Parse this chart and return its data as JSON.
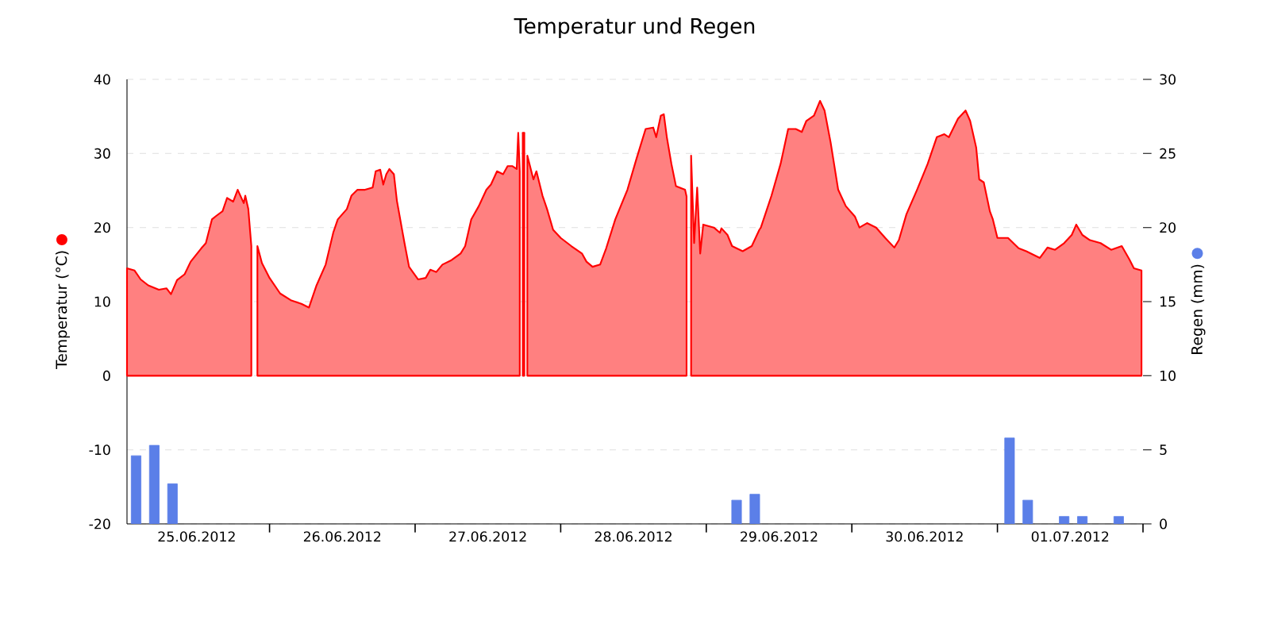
{
  "chart_data": {
    "type": "area",
    "title": "Temperatur und Regen",
    "ylabel": "Temperatur (°C)",
    "y2label": "Regen (mm)",
    "xlim": [
      "2012-06-25T00:30",
      "2012-07-02T00:00"
    ],
    "xticks": [
      {
        "value": "2012-06-25T12:00",
        "label": "25.06.2012"
      },
      {
        "value": "2012-06-26T12:00",
        "label": "26.06.2012"
      },
      {
        "value": "2012-06-27T12:00",
        "label": "27.06.2012"
      },
      {
        "value": "2012-06-28T12:00",
        "label": "28.06.2012"
      },
      {
        "value": "2012-06-29T12:00",
        "label": "29.06.2012"
      },
      {
        "value": "2012-06-30T12:00",
        "label": "30.06.2012"
      },
      {
        "value": "2012-07-01T12:00",
        "label": "01.07.2012"
      },
      {
        "value": "2012-06-26T00:00",
        "label": null
      },
      {
        "value": "2012-06-27T00:00",
        "label": null
      },
      {
        "value": "2012-06-28T00:00",
        "label": null
      },
      {
        "value": "2012-06-29T00:00",
        "label": null
      },
      {
        "value": "2012-06-30T00:00",
        "label": null
      },
      {
        "value": "2012-07-01T00:00",
        "label": null
      },
      {
        "value": "2012-07-02T00:00",
        "label": null
      }
    ],
    "ylim": [
      -20,
      40
    ],
    "yticks": [
      -20,
      -10,
      0,
      10,
      20,
      30,
      40
    ],
    "y2lim": [
      0,
      30
    ],
    "y2ticks": [
      0,
      5,
      10,
      15,
      20,
      25,
      30
    ],
    "grid": "y",
    "series": [
      {
        "color": "#ff0000",
        "x": [
          "2012-06-25T00:30",
          "2012-06-25T01:45",
          "2012-06-25T02:45",
          "2012-06-25T04:00",
          "2012-06-25T05:45",
          "2012-06-25T07:00",
          "2012-06-25T07:45",
          "2012-06-25T08:45",
          "2012-06-25T10:00",
          "2012-06-25T11:00",
          "2012-06-25T12:45",
          "2012-06-25T13:30",
          "2012-06-25T14:30",
          "2012-06-25T15:15",
          "2012-06-25T16:15",
          "2012-06-25T17:00",
          "2012-06-25T18:00",
          "2012-06-25T18:45",
          "2012-06-25T19:45",
          "2012-06-25T20:00",
          "2012-06-25T20:30",
          "2012-06-25T21:00",
          "2012-06-25T21:30",
          "2012-06-25T22:00",
          "2012-06-25T22:45",
          "2012-06-26T00:00",
          "2012-06-26T01:45",
          "2012-06-26T03:30",
          "2012-06-26T05:15",
          "2012-06-26T06:30",
          "2012-06-26T07:45",
          "2012-06-26T09:15",
          "2012-06-26T10:30",
          "2012-06-26T11:15",
          "2012-06-26T12:45",
          "2012-06-26T13:30",
          "2012-06-26T14:30",
          "2012-06-26T15:45",
          "2012-06-26T17:00",
          "2012-06-26T17:30",
          "2012-06-26T18:15",
          "2012-06-26T18:45",
          "2012-06-26T19:15",
          "2012-06-26T19:45",
          "2012-06-26T20:30",
          "2012-06-26T21:00",
          "2012-06-26T22:15",
          "2012-06-26T23:00",
          "2012-06-27T00:30",
          "2012-06-27T01:45",
          "2012-06-27T02:30",
          "2012-06-27T03:30",
          "2012-06-27T04:30",
          "2012-06-27T06:00",
          "2012-06-27T07:30",
          "2012-06-27T08:15",
          "2012-06-27T09:15",
          "2012-06-27T10:30",
          "2012-06-27T11:45",
          "2012-06-27T12:30",
          "2012-06-27T13:30",
          "2012-06-27T14:30",
          "2012-06-27T15:15",
          "2012-06-27T16:00",
          "2012-06-27T16:45",
          "2012-06-27T17:00",
          "2012-06-27T17:15",
          "2012-06-27T17:30",
          "2012-06-27T17:45",
          "2012-06-27T18:00",
          "2012-06-27T18:15",
          "2012-06-27T18:30",
          "2012-06-27T19:30",
          "2012-06-27T20:00",
          "2012-06-27T21:00",
          "2012-06-27T21:45",
          "2012-06-27T22:45",
          "2012-06-28T00:00",
          "2012-06-28T01:45",
          "2012-06-28T03:30",
          "2012-06-28T04:15",
          "2012-06-28T05:15",
          "2012-06-28T06:30",
          "2012-06-28T07:30",
          "2012-06-28T09:00",
          "2012-06-28T11:00",
          "2012-06-28T12:30",
          "2012-06-28T14:00",
          "2012-06-28T15:15",
          "2012-06-28T15:45",
          "2012-06-28T16:30",
          "2012-06-28T17:00",
          "2012-06-28T17:30",
          "2012-06-28T18:15",
          "2012-06-28T19:00",
          "2012-06-28T20:30",
          "2012-06-28T20:45",
          "2012-06-28T21:00",
          "2012-06-28T21:30",
          "2012-06-28T22:00",
          "2012-06-28T22:30",
          "2012-06-28T23:00",
          "2012-06-28T23:30",
          "2012-06-29T01:15",
          "2012-06-29T02:15",
          "2012-06-29T02:30",
          "2012-06-29T03:30",
          "2012-06-29T04:15",
          "2012-06-29T06:00",
          "2012-06-29T07:30",
          "2012-06-29T08:45",
          "2012-06-29T09:00",
          "2012-06-29T10:45",
          "2012-06-29T12:15",
          "2012-06-29T13:30",
          "2012-06-29T14:45",
          "2012-06-29T15:45",
          "2012-06-29T16:30",
          "2012-06-29T17:45",
          "2012-06-29T18:45",
          "2012-06-29T19:30",
          "2012-06-29T20:30",
          "2012-06-29T21:45",
          "2012-06-29T23:00",
          "2012-06-30T00:30",
          "2012-06-30T01:15",
          "2012-06-30T02:30",
          "2012-06-30T04:00",
          "2012-06-30T05:30",
          "2012-06-30T07:00",
          "2012-06-30T07:45",
          "2012-06-30T09:00",
          "2012-06-30T10:45",
          "2012-06-30T12:30",
          "2012-06-30T14:00",
          "2012-06-30T15:15",
          "2012-06-30T16:00",
          "2012-06-30T17:30",
          "2012-06-30T18:45",
          "2012-06-30T19:30",
          "2012-06-30T20:30",
          "2012-06-30T21:00",
          "2012-06-30T21:45",
          "2012-06-30T22:45",
          "2012-06-30T23:15",
          "2012-07-01T00:00",
          "2012-07-01T01:45",
          "2012-07-01T03:30",
          "2012-07-01T04:45",
          "2012-07-01T07:00",
          "2012-07-01T08:15",
          "2012-07-01T09:30",
          "2012-07-01T11:00",
          "2012-07-01T12:15",
          "2012-07-01T13:00",
          "2012-07-01T14:00",
          "2012-07-01T15:15",
          "2012-07-01T17:00",
          "2012-07-01T18:45",
          "2012-07-01T20:30",
          "2012-07-01T21:45",
          "2012-07-01T22:30",
          "2012-07-01T23:45"
        ],
        "values": [
          14.5,
          14.2,
          13.0,
          12.2,
          11.6,
          11.8,
          11.0,
          12.9,
          13.7,
          15.4,
          17.2,
          17.9,
          21.1,
          21.6,
          22.2,
          24.0,
          23.5,
          25.1,
          23.3,
          24.3,
          22.5,
          17.5,
          null,
          17.5,
          15.2,
          13.2,
          11.1,
          10.2,
          9.7,
          9.2,
          12.2,
          15.0,
          19.3,
          21.1,
          22.5,
          24.3,
          25.1,
          25.1,
          25.4,
          27.6,
          27.8,
          25.8,
          27.2,
          27.9,
          27.2,
          23.6,
          17.9,
          14.7,
          13.0,
          13.2,
          14.3,
          14.0,
          15.0,
          15.6,
          16.5,
          17.5,
          21.1,
          22.9,
          25.1,
          25.8,
          27.6,
          27.2,
          28.3,
          28.3,
          27.9,
          32.8,
          27.6,
          null,
          32.8,
          32.8,
          null,
          29.7,
          26.5,
          27.6,
          24.3,
          22.5,
          19.7,
          18.6,
          17.5,
          16.5,
          15.4,
          14.7,
          15.0,
          17.2,
          21.1,
          25.1,
          29.3,
          33.3,
          33.5,
          32.2,
          35.1,
          35.3,
          32.2,
          28.6,
          25.6,
          25.1,
          24.2,
          null,
          29.7,
          17.9,
          25.4,
          16.5,
          20.4,
          20.0,
          19.3,
          19.9,
          19.0,
          17.5,
          16.8,
          17.5,
          19.7,
          20.0,
          24.3,
          28.6,
          33.3,
          33.3,
          32.9,
          34.4,
          35.1,
          37.1,
          35.8,
          31.5,
          25.1,
          22.9,
          21.5,
          20.0,
          20.6,
          20.0,
          18.6,
          17.3,
          18.3,
          21.8,
          25.1,
          28.6,
          32.2,
          32.6,
          32.2,
          34.7,
          35.8,
          34.4,
          30.8,
          26.5,
          26.1,
          22.2,
          21.1,
          18.6,
          18.6,
          17.2,
          16.8,
          15.9,
          17.3,
          17.0,
          17.9,
          19.0,
          20.4,
          19.0,
          18.3,
          17.9,
          17.0,
          17.5,
          15.7,
          14.5,
          14.2
        ]
      },
      {
        "type": "bar",
        "axis": "y2",
        "color": "#5b7fe8",
        "x": [
          "2012-06-25T02:00",
          "2012-06-25T05:00",
          "2012-06-25T08:00",
          "2012-06-29T05:00",
          "2012-06-29T08:00",
          "2012-07-01T02:00",
          "2012-07-01T05:00",
          "2012-07-01T11:00",
          "2012-07-01T14:00",
          "2012-07-01T20:00"
        ],
        "values": [
          4.6,
          5.3,
          2.7,
          1.6,
          2.0,
          5.8,
          1.6,
          0.5,
          0.5,
          0.5
        ]
      }
    ]
  }
}
